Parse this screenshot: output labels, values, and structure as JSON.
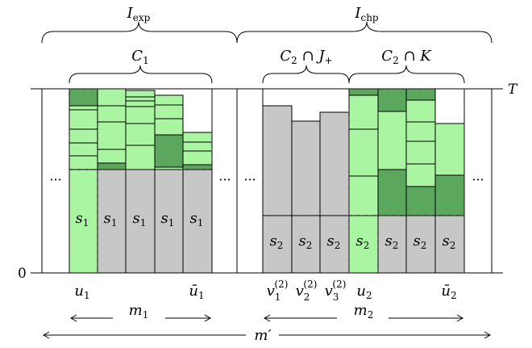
{
  "colors": {
    "light_green": "#a9f5a2",
    "dark_green": "#5aa75d",
    "gray": "#c7c7c7",
    "stroke": "#000000"
  },
  "labels": {
    "i_exp": {
      "base": "I",
      "sub": "exp"
    },
    "i_chp": {
      "base": "I",
      "sub": "chp"
    },
    "c1": {
      "base": "C",
      "sub": "1"
    },
    "c2_j": {
      "base": "C",
      "sub": "2",
      "rest": " ∩ J",
      "rest_sub": "+"
    },
    "c2_k": {
      "base": "C",
      "sub": "2",
      "rest": " ∩ K"
    },
    "t": "T",
    "zero": "0",
    "ellipsis": "···",
    "s1": {
      "base": "s",
      "sub": "1"
    },
    "s2": {
      "base": "s",
      "sub": "2"
    },
    "u1": {
      "base": "u",
      "sub": "1"
    },
    "ubar1": {
      "base": "ū",
      "sub": "1"
    },
    "v1": {
      "base": "v",
      "sub": "1",
      "sup": "(2)"
    },
    "v2": {
      "base": "v",
      "sub": "2",
      "sup": "(2)"
    },
    "v3": {
      "base": "v",
      "sub": "3",
      "sup": "(2)"
    },
    "u2": {
      "base": "u",
      "sub": "2"
    },
    "ubar2": {
      "base": "ū",
      "sub": "2"
    },
    "m1": {
      "base": "m",
      "sub": "1"
    },
    "m2": {
      "base": "m",
      "sub": "2"
    },
    "mprime": {
      "base": "m′"
    }
  }
}
